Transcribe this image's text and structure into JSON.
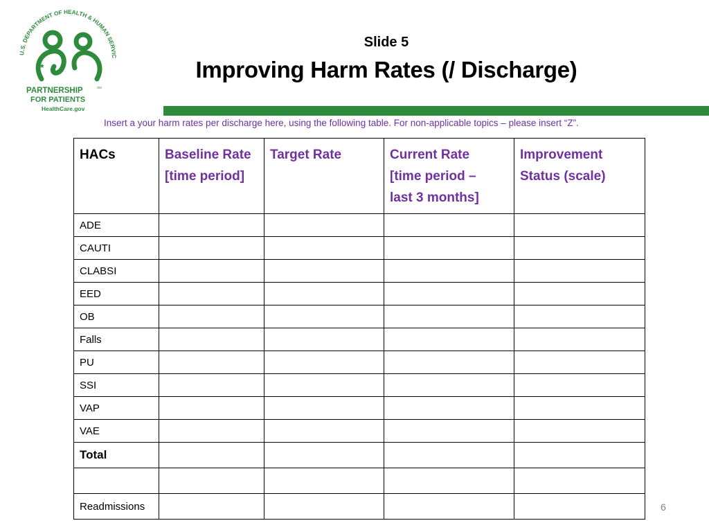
{
  "logo": {
    "arc_text": "U.S. DEPARTMENT OF HEALTH & HUMAN SERVICES",
    "line1": "PARTNERSHIP",
    "line2": "FOR PATIENTS",
    "sm": "SM",
    "url": "HealthCare.gov",
    "brand_color": "#2e8b3c"
  },
  "header": {
    "slide_label": "Slide 5",
    "title": "Improving Harm Rates (/ Discharge)"
  },
  "instruction": "Insert a your harm rates per discharge here, using the following table. For non-applicable topics – please insert “Z”.",
  "table": {
    "headers": [
      {
        "line1": "HACs",
        "line2": "",
        "line3": ""
      },
      {
        "line1": "Baseline Rate",
        "line2": "[time period]",
        "line3": ""
      },
      {
        "line1": "Target Rate",
        "line2": "",
        "line3": ""
      },
      {
        "line1": "Current Rate",
        "line2": "[time period –",
        "line3": "last 3 months]"
      },
      {
        "line1": "Improvement",
        "line2": "Status (scale)",
        "line3": ""
      }
    ],
    "rows": [
      {
        "label": "ADE"
      },
      {
        "label": "CAUTI"
      },
      {
        "label": "CLABSI"
      },
      {
        "label": "EED"
      },
      {
        "label": "OB"
      },
      {
        "label": "Falls"
      },
      {
        "label": "PU"
      },
      {
        "label": "SSI"
      },
      {
        "label": "VAP"
      },
      {
        "label": "VAE"
      },
      {
        "label": "Total"
      },
      {
        "label": ""
      },
      {
        "label": "Readmissions"
      }
    ]
  },
  "colors": {
    "accent_purple": "#7030a0",
    "bar_green": "#2e8b3c",
    "page_number_gray": "#7f7f7f"
  },
  "page_number": "6"
}
